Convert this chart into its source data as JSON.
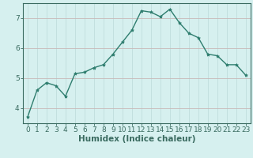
{
  "x": [
    0,
    1,
    2,
    3,
    4,
    5,
    6,
    7,
    8,
    9,
    10,
    11,
    12,
    13,
    14,
    15,
    16,
    17,
    18,
    19,
    20,
    21,
    22,
    23
  ],
  "y": [
    3.7,
    4.6,
    4.85,
    4.75,
    4.4,
    5.15,
    5.2,
    5.35,
    5.45,
    5.8,
    6.2,
    6.6,
    7.25,
    7.2,
    7.05,
    7.3,
    6.85,
    6.5,
    6.35,
    5.8,
    5.75,
    5.45,
    5.45,
    5.1
  ],
  "line_color": "#2e7d6e",
  "marker": "*",
  "marker_size": 3,
  "bg_color": "#d6f0ef",
  "grid_color": "#c0dedd",
  "grid_vcolor": "#c8b8b8",
  "xlabel": "Humidex (Indice chaleur)",
  "xlim": [
    -0.5,
    23.5
  ],
  "ylim": [
    3.5,
    7.5
  ],
  "yticks": [
    4,
    5,
    6,
    7
  ],
  "xticks": [
    0,
    1,
    2,
    3,
    4,
    5,
    6,
    7,
    8,
    9,
    10,
    11,
    12,
    13,
    14,
    15,
    16,
    17,
    18,
    19,
    20,
    21,
    22,
    23
  ],
  "xlabel_fontsize": 7.5,
  "tick_fontsize": 6.5,
  "line_width": 1.0,
  "fig_bg_color": "#d6f0ef",
  "spine_color": "#3a6b60"
}
